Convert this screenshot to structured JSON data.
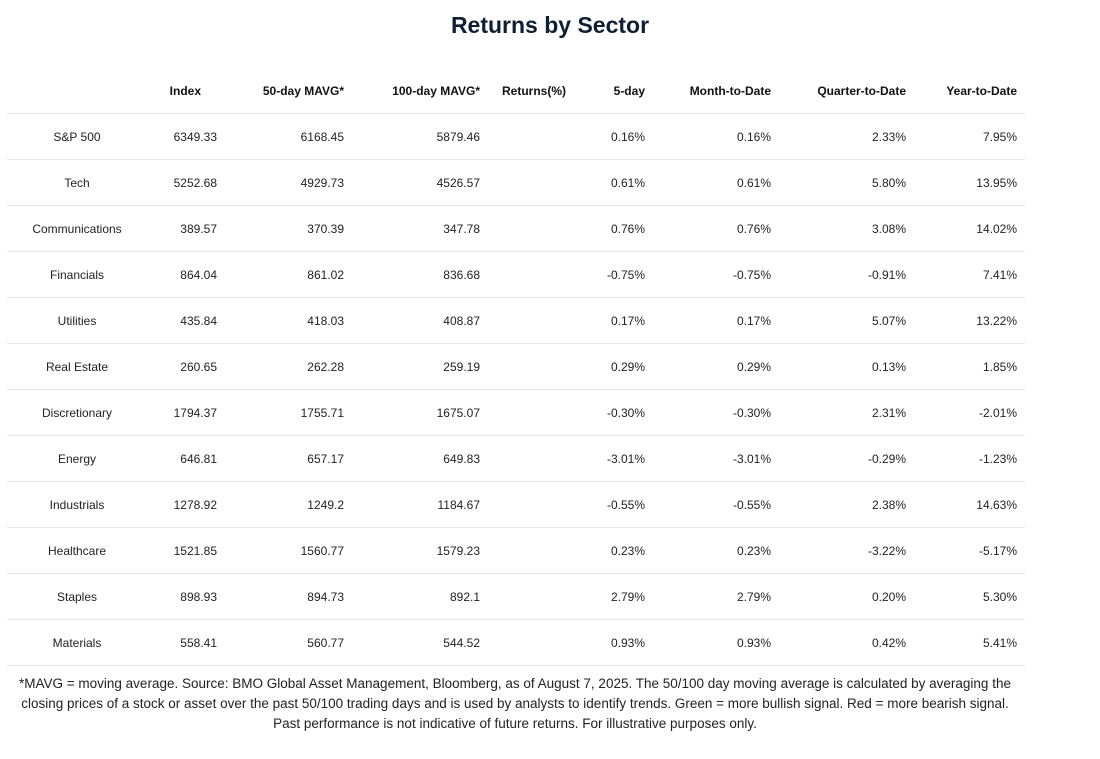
{
  "title": "Returns by Sector",
  "table": {
    "headers": [
      "Index",
      "50-day MAVG*",
      "100-day MAVG*",
      "Returns(%)",
      "5-day",
      "Month-to-Date",
      "Quarter-to-Date",
      "Year-to-Date"
    ],
    "rows": [
      [
        "S&P 500",
        "6349.33",
        "6168.45",
        "5879.46",
        "0.16%",
        "0.16%",
        "2.33%",
        "7.95%"
      ],
      [
        "Tech",
        "5252.68",
        "4929.73",
        "4526.57",
        "0.61%",
        "0.61%",
        "5.80%",
        "13.95%"
      ],
      [
        "Communications",
        "389.57",
        "370.39",
        "347.78",
        "0.76%",
        "0.76%",
        "3.08%",
        "14.02%"
      ],
      [
        "Financials",
        "864.04",
        "861.02",
        "836.68",
        "-0.75%",
        "-0.75%",
        "-0.91%",
        "7.41%"
      ],
      [
        "Utilities",
        "435.84",
        "418.03",
        "408.87",
        "0.17%",
        "0.17%",
        "5.07%",
        "13.22%"
      ],
      [
        "Real Estate",
        "260.65",
        "262.28",
        "259.19",
        "0.29%",
        "0.29%",
        "0.13%",
        "1.85%"
      ],
      [
        "Discretionary",
        "1794.37",
        "1755.71",
        "1675.07",
        "-0.30%",
        "-0.30%",
        "2.31%",
        "-2.01%"
      ],
      [
        "Energy",
        "646.81",
        "657.17",
        "649.83",
        "-3.01%",
        "-3.01%",
        "-0.29%",
        "-1.23%"
      ],
      [
        "Industrials",
        "1278.92",
        "1249.2",
        "1184.67",
        "-0.55%",
        "-0.55%",
        "2.38%",
        "14.63%"
      ],
      [
        "Healthcare",
        "1521.85",
        "1560.77",
        "1579.23",
        "0.23%",
        "0.23%",
        "-3.22%",
        "-5.17%"
      ],
      [
        "Staples",
        "898.93",
        "894.73",
        "892.1",
        "2.79%",
        "2.79%",
        "0.20%",
        "5.30%"
      ],
      [
        "Materials",
        "558.41",
        "560.77",
        "544.52",
        "0.93%",
        "0.93%",
        "0.42%",
        "5.41%"
      ]
    ]
  },
  "footnote": "*MAVG = moving average. Source: BMO Global Asset Management, Bloomberg, as of August 7, 2025. The 50/100 day moving average is calculated by averaging the closing prices of a stock or asset over the past 50/100 trading days and is used by analysts to identify trends. Green = more bullish signal. Red = more bearish signal. Past performance is not indicative of future returns. For illustrative purposes only."
}
